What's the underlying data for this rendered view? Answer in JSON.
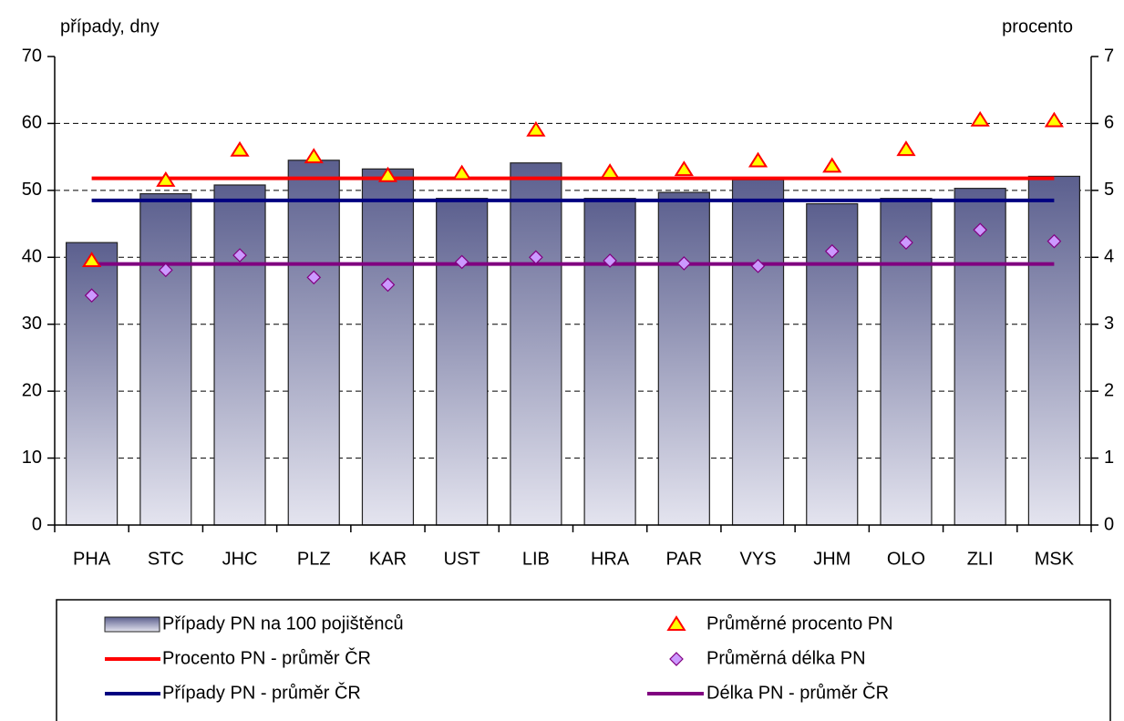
{
  "chart_data": {
    "type": "bar",
    "y_label": "případy, dny",
    "y2_label": "procento",
    "categories": [
      "PHA",
      "STC",
      "JHC",
      "PLZ",
      "KAR",
      "UST",
      "LIB",
      "HRA",
      "PAR",
      "VYS",
      "JHM",
      "OLO",
      "ZLI",
      "MSK"
    ],
    "ylim": [
      0,
      70
    ],
    "yticks": [
      0,
      10,
      20,
      30,
      40,
      50,
      60,
      70
    ],
    "y2lim": [
      0,
      7
    ],
    "y2ticks": [
      0,
      1,
      2,
      3,
      4,
      5,
      6,
      7
    ],
    "grid": true,
    "series": [
      {
        "name": "Případy PN na 100 pojištěnců",
        "type": "bar",
        "color": "#5b5f8e",
        "values": [
          42.2,
          49.5,
          50.8,
          54.5,
          53.2,
          48.8,
          54.1,
          48.8,
          49.7,
          51.6,
          48.0,
          48.8,
          50.3,
          52.1
        ]
      },
      {
        "name": "Procento PN - průměr ČR",
        "type": "hline",
        "color": "#ff0000",
        "axis": "y2",
        "value": 5.18
      },
      {
        "name": "Případy PN - průměr ČR",
        "type": "hline",
        "color": "#000080",
        "value": 48.5
      },
      {
        "name": "Průměrné procento PN",
        "type": "triangle",
        "color": "#ffff00",
        "axis": "y2",
        "values": [
          3.95,
          5.15,
          5.6,
          5.5,
          5.22,
          5.25,
          5.9,
          5.27,
          5.31,
          5.44,
          5.36,
          5.61,
          6.05,
          6.04
        ]
      },
      {
        "name": "Průměrná délka PN",
        "type": "diamond",
        "color": "#cc99ff",
        "values": [
          34.3,
          38.1,
          40.3,
          37.0,
          35.9,
          39.3,
          40.0,
          39.5,
          39.1,
          38.7,
          40.9,
          42.2,
          44.1,
          42.4
        ]
      },
      {
        "name": "Délka PN - průměr ČR",
        "type": "hline",
        "color": "#800080",
        "value": 39.0
      }
    ]
  }
}
